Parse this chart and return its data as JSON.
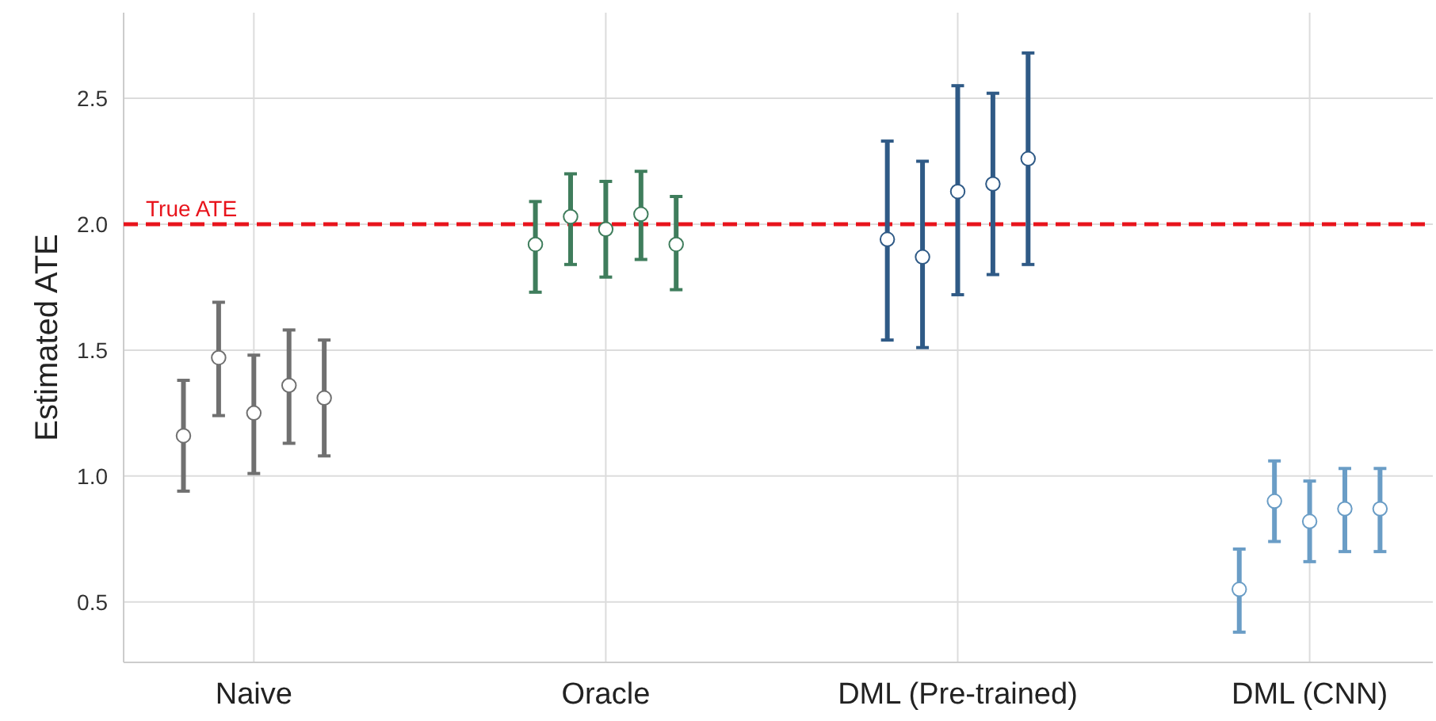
{
  "chart_data": {
    "type": "scatter",
    "ylabel": "Estimated ATE",
    "marker": "circle",
    "grid": true,
    "categories": [
      null,
      null,
      "Naive",
      null,
      null,
      null,
      null,
      null,
      null,
      null,
      null,
      null,
      "Oracle",
      null,
      null,
      null,
      null,
      null,
      null,
      null,
      null,
      null,
      "DML (Pre-trained)",
      null,
      null,
      null,
      null,
      null,
      null,
      null,
      null,
      null,
      "DML (CNN)",
      null,
      null
    ],
    "ylim": [
      0.26,
      2.84
    ],
    "yticks": [
      0.5,
      {
        "value": 1,
        "label": "1.0"
      },
      1.5,
      {
        "value": 2,
        "label": "2.0"
      },
      2.5
    ],
    "ref_lines": [
      {
        "axis": "y",
        "value": 2.0,
        "label": "True ATE",
        "color": "#e8141c",
        "line_style": "dashed"
      }
    ],
    "series": [
      {
        "color": "#707070",
        "values": [
          1.16,
          1.47,
          1.25,
          1.36,
          1.31,
          null,
          null,
          null,
          null,
          null,
          null,
          null,
          null,
          null,
          null,
          null,
          null,
          null,
          null,
          null,
          null,
          null,
          null,
          null,
          null,
          null,
          null,
          null,
          null,
          null,
          null,
          null,
          null,
          null,
          null
        ],
        "errors": [
          [
            0.94,
            1.38
          ],
          [
            1.24,
            1.69
          ],
          [
            1.01,
            1.48
          ],
          [
            1.13,
            1.58
          ],
          [
            1.08,
            1.54
          ],
          null,
          null,
          null,
          null,
          null,
          null,
          null,
          null,
          null,
          null,
          null,
          null,
          null,
          null,
          null,
          null,
          null,
          null,
          null,
          null,
          null,
          null,
          null,
          null,
          null,
          null,
          null,
          null,
          null,
          null
        ]
      },
      {
        "color": "#3f7d5c",
        "values": [
          null,
          null,
          null,
          null,
          null,
          null,
          null,
          null,
          null,
          null,
          1.92,
          2.03,
          1.98,
          2.04,
          1.92,
          null,
          null,
          null,
          null,
          null,
          null,
          null,
          null,
          null,
          null,
          null,
          null,
          null,
          null,
          null,
          null,
          null,
          null,
          null,
          null
        ],
        "errors": [
          null,
          null,
          null,
          null,
          null,
          null,
          null,
          null,
          null,
          null,
          [
            1.73,
            2.09
          ],
          [
            1.84,
            2.2
          ],
          [
            1.79,
            2.17
          ],
          [
            1.86,
            2.21
          ],
          [
            1.74,
            2.11
          ],
          null,
          null,
          null,
          null,
          null,
          null,
          null,
          null,
          null,
          null,
          null,
          null,
          null,
          null,
          null,
          null,
          null,
          null,
          null,
          null
        ]
      },
      {
        "color": "#2f5a86",
        "values": [
          null,
          null,
          null,
          null,
          null,
          null,
          null,
          null,
          null,
          null,
          null,
          null,
          null,
          null,
          null,
          null,
          null,
          null,
          null,
          null,
          1.94,
          1.87,
          2.13,
          2.16,
          2.26,
          null,
          null,
          null,
          null,
          null,
          null,
          null,
          null,
          null,
          null
        ],
        "errors": [
          null,
          null,
          null,
          null,
          null,
          null,
          null,
          null,
          null,
          null,
          null,
          null,
          null,
          null,
          null,
          null,
          null,
          null,
          null,
          null,
          [
            1.54,
            2.33
          ],
          [
            1.51,
            2.25
          ],
          [
            1.72,
            2.55
          ],
          [
            1.8,
            2.52
          ],
          [
            1.84,
            2.68
          ],
          null,
          null,
          null,
          null,
          null,
          null,
          null,
          null,
          null,
          null
        ]
      },
      {
        "color": "#6a9dc6",
        "values": [
          null,
          null,
          null,
          null,
          null,
          null,
          null,
          null,
          null,
          null,
          null,
          null,
          null,
          null,
          null,
          null,
          null,
          null,
          null,
          null,
          null,
          null,
          null,
          null,
          null,
          null,
          null,
          null,
          null,
          null,
          0.55,
          0.9,
          0.82,
          0.87,
          0.87
        ],
        "errors": [
          null,
          null,
          null,
          null,
          null,
          null,
          null,
          null,
          null,
          null,
          null,
          null,
          null,
          null,
          null,
          null,
          null,
          null,
          null,
          null,
          null,
          null,
          null,
          null,
          null,
          null,
          null,
          null,
          null,
          null,
          [
            0.38,
            0.71
          ],
          [
            0.74,
            1.06
          ],
          [
            0.66,
            0.98
          ],
          [
            0.7,
            1.03
          ],
          [
            0.7,
            1.03
          ]
        ]
      }
    ]
  }
}
